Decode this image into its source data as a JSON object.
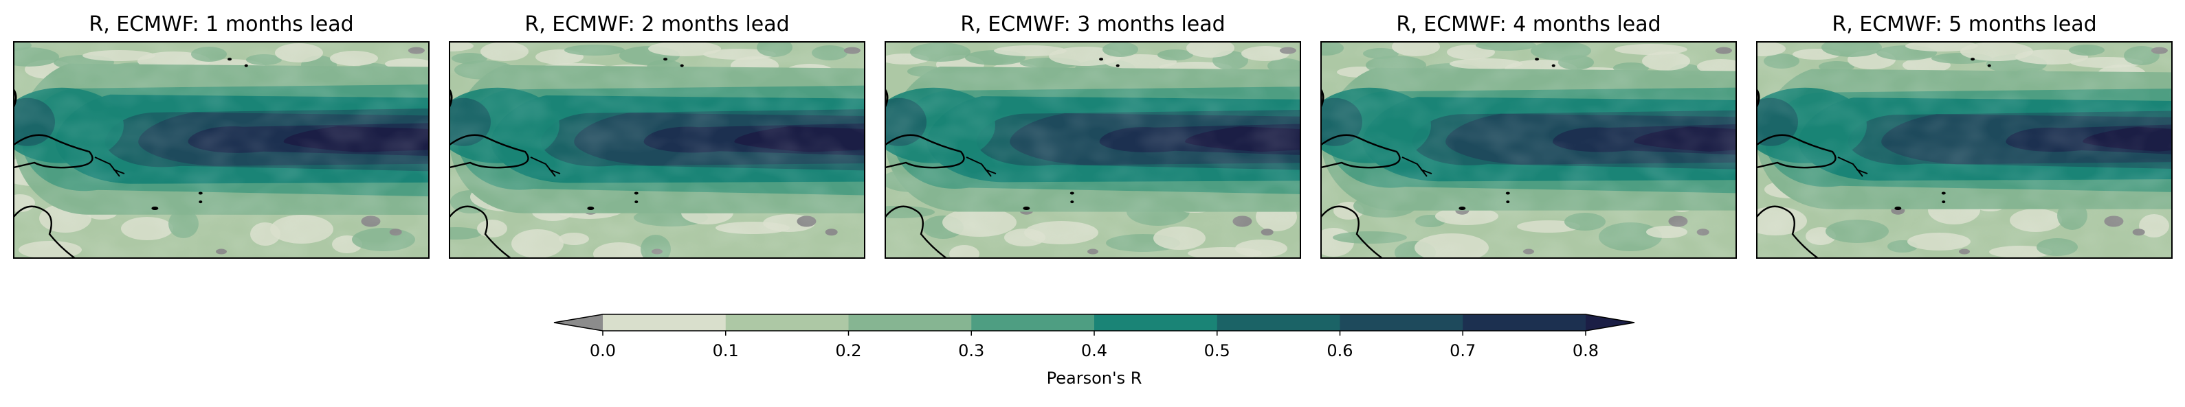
{
  "chart_data": {
    "type": "heatmap",
    "panels": [
      {
        "title": "R, ECMWF: 1 months lead",
        "band_extent": 1.0
      },
      {
        "title": "R, ECMWF: 2 months lead",
        "band_extent": 0.92
      },
      {
        "title": "R, ECMWF: 3 months lead",
        "band_extent": 0.84
      },
      {
        "title": "R, ECMWF: 4 months lead",
        "band_extent": 0.77
      },
      {
        "title": "R, ECMWF: 5 months lead",
        "band_extent": 0.7
      }
    ],
    "colorbar": {
      "label": "Pearson's R",
      "levels": [
        0.0,
        0.1,
        0.2,
        0.3,
        0.4,
        0.5,
        0.6,
        0.7,
        0.8
      ],
      "tick_labels": [
        "0.0",
        "0.1",
        "0.2",
        "0.3",
        "0.4",
        "0.5",
        "0.6",
        "0.7",
        "0.8"
      ],
      "extend": "both",
      "colors": [
        "#d9dfcc",
        "#adc8a5",
        "#86b592",
        "#4e9e82",
        "#1a8476",
        "#1b6366",
        "#1e4a5c",
        "#1c3050"
      ],
      "under_color": "#8c8c8c",
      "over_color": "#1b1e45"
    }
  }
}
